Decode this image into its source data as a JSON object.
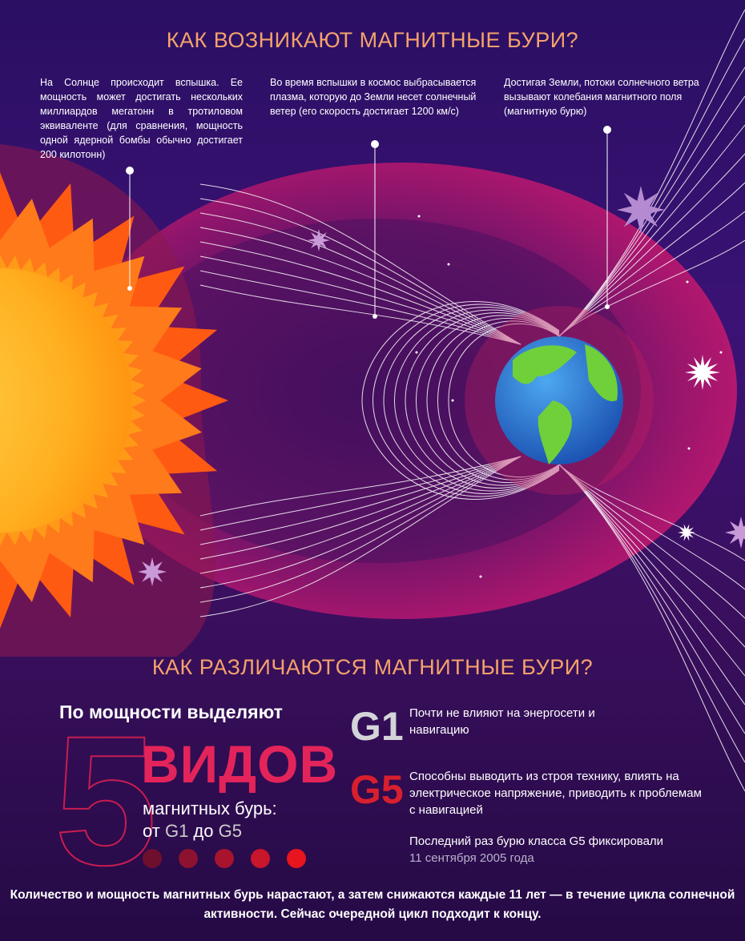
{
  "section1": {
    "title": "КАК ВОЗНИКАЮТ МАГНИТНЫЕ БУРИ?",
    "notes": [
      "На Солнце происходит вспышка. Ее мощность может достигать нескольких миллиардов мегатонн в тротиловом эквиваленте (для сравнения, мощность одной ядерной бомбы обычно достигает 200 килотонн)",
      "Во время вспышки в космос выбрасывается плазма, которую до Земли несет солнечный ветер (его скорость достигает 1200 км/с)",
      "Достигая Земли, потоки солнечного ветра вызывают колебания магнитного поля (магнитную бурю)"
    ]
  },
  "section2": {
    "title": "КАК РАЗЛИЧАЮТСЯ МАГНИТНЫЕ БУРИ?",
    "lead": "По мощности выделяют",
    "number": "5",
    "kinds": "ВИДОВ",
    "sub_line1": "магнитных бурь:",
    "sub_line2_prefix": "от ",
    "g_from": "G1",
    "sub_mid": " до ",
    "g_to": "G5",
    "level_dots": [
      "#6e0f2e",
      "#8c1230",
      "#a8142e",
      "#c8162c",
      "#e8141e"
    ],
    "classes": [
      {
        "label": "G1",
        "color": "#d4d4d8",
        "desc": "Почти не влияют на энергосети и навигацию"
      },
      {
        "label": "G5",
        "color": "#d81f2e",
        "desc": "Способны выводить из строя технику, влиять на электрическое напряжение, приводить к проблемам с навигацией"
      }
    ],
    "last_g5": "Последний раз бурю класса G5 фиксировали",
    "last_g5_date": "11 сентября 2005 года",
    "footer": "Количество и мощность магнитных бурь нарастают, а затем снижаются каждые 11 лет — в течение цикла солнечной активности. Сейчас очередной цикл подходит к концу."
  },
  "colors": {
    "heading": "#f5a26b",
    "accent": "#e3245a",
    "sun": "#ff6a1a",
    "plasma": "#b0186e"
  }
}
